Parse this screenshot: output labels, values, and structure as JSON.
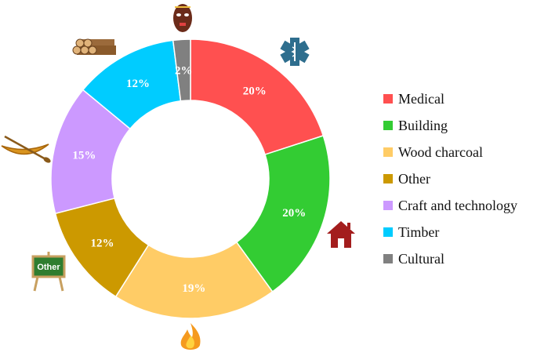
{
  "chart_data": {
    "type": "pie",
    "donut": true,
    "categories": [
      "Medical",
      "Building",
      "Wood charcoal",
      "Other",
      "Craft and technology",
      "Timber",
      "Cultural"
    ],
    "values": [
      20,
      20,
      19,
      12,
      15,
      12,
      2
    ],
    "labels": [
      "20%",
      "20%",
      "19%",
      "12%",
      "15%",
      "12%",
      "2%"
    ],
    "colors": [
      "#ff5050",
      "#33cc33",
      "#ffcc66",
      "#cc9900",
      "#cc99ff",
      "#00ccff",
      "#808080"
    ],
    "legend_position": "right",
    "icons": [
      "medical-star-of-life-icon",
      "house-icon",
      "fire-icon",
      "other-signboard-icon",
      "canoe-icon",
      "log-pile-icon",
      "tribal-mask-icon"
    ]
  },
  "icon_texts": {
    "other_sign": "Other"
  }
}
